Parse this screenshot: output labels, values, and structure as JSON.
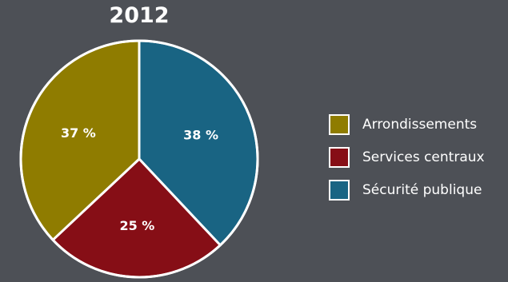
{
  "chart_data": {
    "type": "pie",
    "title": "2012",
    "categories": [
      "Arrondissements",
      "Services centraux",
      "Sécurité publique"
    ],
    "values": [
      37,
      25,
      38
    ],
    "data_labels": [
      "37 %",
      "25 %",
      "38 %"
    ],
    "colors": [
      "#8f7c00",
      "#860e16",
      "#196483"
    ],
    "legend_position": "right"
  }
}
